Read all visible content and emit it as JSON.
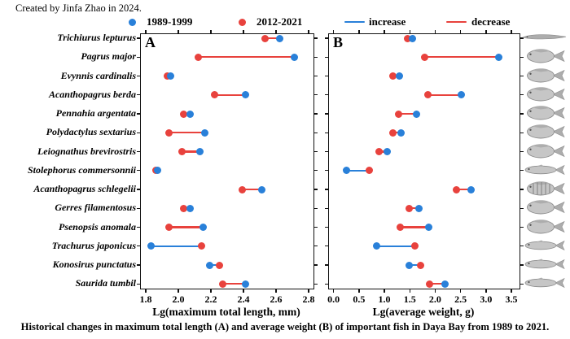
{
  "credit": "Created by Jinfa Zhao in 2024.",
  "caption": "Historical changes in maximum total length (A) and average weight (B) of important fish in Daya Bay from 1989 to 2021.",
  "colors": {
    "blue": "#2980d9",
    "red": "#e8423d",
    "fish_gray": "#adadad"
  },
  "legend_periods": [
    {
      "label": "1989-1999",
      "color_key": "blue"
    },
    {
      "label": "2012-2021",
      "color_key": "red"
    }
  ],
  "legend_trends": [
    {
      "label": "increase",
      "color_key": "blue"
    },
    {
      "label": "decrease",
      "color_key": "red"
    }
  ],
  "species": [
    {
      "name": "Trichiurus lepturus",
      "fish": "ribbon"
    },
    {
      "name": "Pagrus major",
      "fish": "deep"
    },
    {
      "name": "Evynnis cardinalis",
      "fish": "deep"
    },
    {
      "name": "Acanthopagrus berda",
      "fish": "deep"
    },
    {
      "name": "Pennahia argentata",
      "fish": "deep"
    },
    {
      "name": "Polydactylus sextarius",
      "fish": "deep"
    },
    {
      "name": "Leiognathus brevirostris",
      "fish": "deep"
    },
    {
      "name": "Stolephorus commersonnii",
      "fish": "slender"
    },
    {
      "name": "Acanthopagrus schlegelii",
      "fish": "striped"
    },
    {
      "name": "Gerres filamentosus",
      "fish": "deep"
    },
    {
      "name": "Psenopsis anomala",
      "fish": "deep"
    },
    {
      "name": "Trachurus japonicus",
      "fish": "slender"
    },
    {
      "name": "Konosirus punctatus",
      "fish": "slender"
    },
    {
      "name": "Saurida tumbil",
      "fish": "slender"
    }
  ],
  "chart_data": [
    {
      "type": "dumbbell",
      "panel_label": "A",
      "xlabel": "Lg(maximum total length, mm)",
      "xticks": [
        1.8,
        2.0,
        2.2,
        2.4,
        2.6,
        2.8
      ],
      "xtick_labels": [
        "1.8",
        "2.0",
        "2.2",
        "2.4",
        "2.6",
        "2.8"
      ],
      "xlim": [
        1.77,
        2.83
      ],
      "categories": [
        "Trichiurus lepturus",
        "Pagrus major",
        "Evynnis cardinalis",
        "Acanthopagrus berda",
        "Pennahia argentata",
        "Polydactylus sextarius",
        "Leiognathus brevirostris",
        "Stolephorus commersonnii",
        "Acanthopagrus schlegelii",
        "Gerres filamentosus",
        "Psenopsis anomala",
        "Trachurus japonicus",
        "Konosirus punctatus",
        "Saurida tumbil"
      ],
      "series": [
        {
          "name": "1989-1999",
          "values": [
            2.62,
            2.71,
            1.95,
            2.41,
            2.07,
            2.16,
            2.13,
            1.87,
            2.51,
            2.07,
            2.15,
            1.83,
            2.19,
            2.41
          ]
        },
        {
          "name": "2012-2021",
          "values": [
            2.53,
            2.12,
            1.93,
            2.22,
            2.03,
            1.94,
            2.02,
            1.86,
            2.39,
            2.03,
            1.94,
            2.14,
            2.25,
            2.27
          ]
        }
      ],
      "trends": [
        "decrease",
        "decrease",
        "decrease",
        "decrease",
        "decrease",
        "decrease",
        "decrease",
        "none",
        "decrease",
        "decrease",
        "decrease",
        "increase",
        "increase",
        "decrease"
      ]
    },
    {
      "type": "dumbbell",
      "panel_label": "B",
      "xlabel": "Lg(average weight, g)",
      "xticks": [
        0.0,
        0.5,
        1.0,
        1.5,
        2.0,
        2.5,
        3.0,
        3.5
      ],
      "xtick_labels": [
        "0.0",
        "0.5",
        "1.0",
        "1.5",
        "2.0",
        "2.5",
        "3.0",
        "3.5"
      ],
      "xlim": [
        -0.09,
        3.66
      ],
      "categories": [
        "Trichiurus lepturus",
        "Pagrus major",
        "Evynnis cardinalis",
        "Acanthopagrus berda",
        "Pennahia argentata",
        "Polydactylus sextarius",
        "Leiognathus brevirostris",
        "Stolephorus commersonnii",
        "Acanthopagrus schlegelii",
        "Gerres filamentosus",
        "Psenopsis anomala",
        "Trachurus japonicus",
        "Konosirus punctatus",
        "Saurida tumbil"
      ],
      "series": [
        {
          "name": "1989-1999",
          "values": [
            1.55,
            3.25,
            1.29,
            2.51,
            1.63,
            1.33,
            1.05,
            0.26,
            2.7,
            1.68,
            1.88,
            0.84,
            1.49,
            2.19
          ]
        },
        {
          "name": "2012-2021",
          "values": [
            1.46,
            1.79,
            1.16,
            1.85,
            1.28,
            1.17,
            0.9,
            0.71,
            2.41,
            1.49,
            1.32,
            1.6,
            1.71,
            1.89
          ]
        }
      ],
      "trends": [
        "decrease",
        "decrease",
        "decrease",
        "decrease",
        "decrease",
        "decrease",
        "decrease",
        "increase",
        "decrease",
        "decrease",
        "decrease",
        "increase",
        "increase",
        "decrease"
      ]
    }
  ]
}
